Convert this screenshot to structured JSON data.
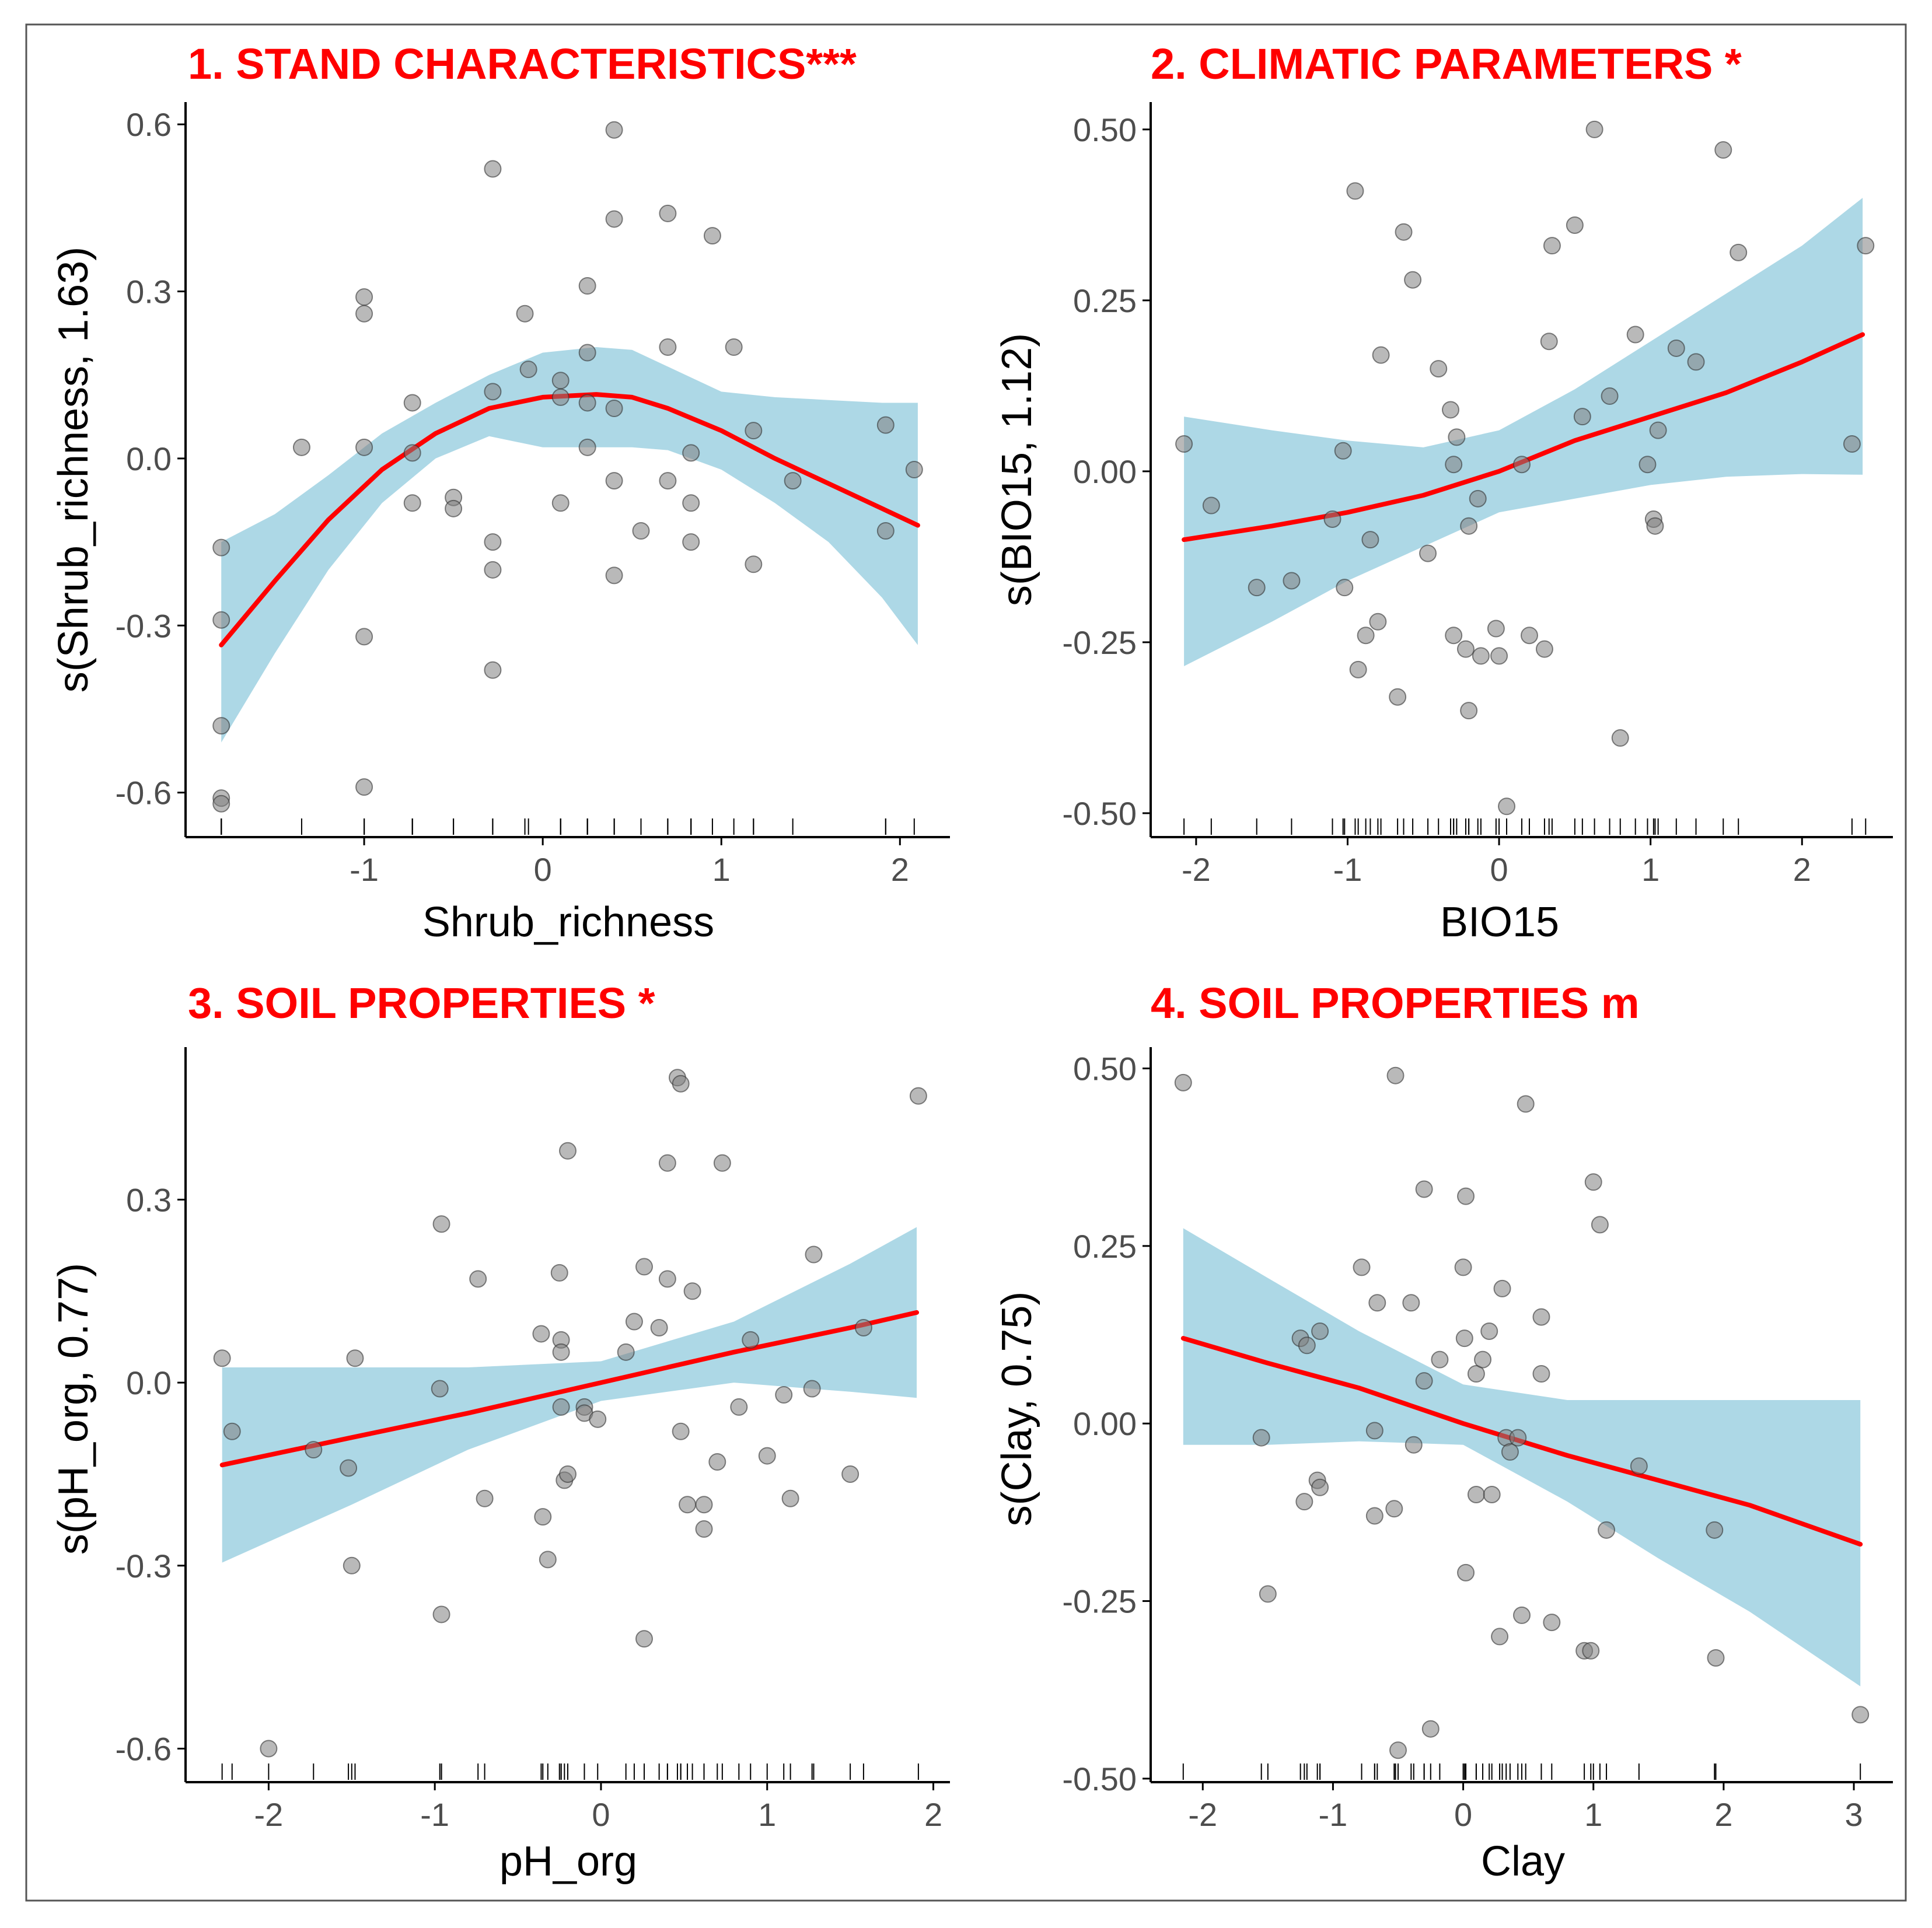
{
  "colors": {
    "title": "#ff0000",
    "band": "#add8e6",
    "line": "#ff0000",
    "point": "#7f7f7f",
    "axis": "#000000",
    "tick_label": "#4d4d4d"
  },
  "chart_data": [
    {
      "type": "scatter",
      "title": "1. STAND CHARACTERISTICS***",
      "xlabel": "Shrub_richness",
      "ylabel": "s(Shrub_richness, 1.63)",
      "xlim": [
        -2.0,
        2.28
      ],
      "ylim": [
        -0.68,
        0.64
      ],
      "xticks": [
        -1,
        0,
        1,
        2
      ],
      "xtick_labels": [
        "-1",
        "0",
        "1",
        "2"
      ],
      "yticks": [
        -0.6,
        -0.3,
        0.0,
        0.3,
        0.6
      ],
      "ytick_labels": [
        "-0.6",
        "-0.3",
        "0.0",
        "0.3",
        "0.6"
      ],
      "fit": {
        "x": [
          -1.8,
          -1.5,
          -1.2,
          -0.9,
          -0.6,
          -0.3,
          0.0,
          0.3,
          0.5,
          0.7,
          1.0,
          1.3,
          1.6,
          1.9,
          2.1
        ],
        "y": [
          -0.335,
          -0.22,
          -0.11,
          -0.02,
          0.045,
          0.09,
          0.11,
          0.115,
          0.11,
          0.09,
          0.05,
          0.0,
          -0.045,
          -0.09,
          -0.12
        ],
        "lower": [
          -0.51,
          -0.35,
          -0.2,
          -0.08,
          0.0,
          0.04,
          0.02,
          0.02,
          0.02,
          0.015,
          -0.02,
          -0.08,
          -0.15,
          -0.25,
          -0.335
        ],
        "upper": [
          -0.15,
          -0.1,
          -0.03,
          0.045,
          0.1,
          0.15,
          0.19,
          0.2,
          0.195,
          0.165,
          0.12,
          0.11,
          0.105,
          0.1,
          0.1
        ]
      },
      "points": [
        [
          -1.8,
          -0.16
        ],
        [
          -1.8,
          -0.29
        ],
        [
          -1.8,
          -0.48
        ],
        [
          -1.8,
          -0.61
        ],
        [
          -1.8,
          -0.62
        ],
        [
          -1.35,
          0.02
        ],
        [
          -1.0,
          0.29
        ],
        [
          -1.0,
          0.26
        ],
        [
          -1.0,
          0.02
        ],
        [
          -1.0,
          -0.32
        ],
        [
          -1.0,
          -0.59
        ],
        [
          -0.73,
          0.1
        ],
        [
          -0.73,
          0.01
        ],
        [
          -0.73,
          -0.08
        ],
        [
          -0.5,
          -0.07
        ],
        [
          -0.5,
          -0.09
        ],
        [
          -0.28,
          0.52
        ],
        [
          -0.28,
          0.12
        ],
        [
          -0.28,
          -0.15
        ],
        [
          -0.28,
          -0.2
        ],
        [
          -0.28,
          -0.38
        ],
        [
          -0.1,
          0.26
        ],
        [
          -0.08,
          0.16
        ],
        [
          0.1,
          0.14
        ],
        [
          0.1,
          0.11
        ],
        [
          0.1,
          -0.08
        ],
        [
          0.25,
          0.31
        ],
        [
          0.25,
          0.19
        ],
        [
          0.25,
          0.1
        ],
        [
          0.25,
          0.02
        ],
        [
          0.4,
          0.59
        ],
        [
          0.4,
          0.43
        ],
        [
          0.4,
          0.09
        ],
        [
          0.4,
          -0.04
        ],
        [
          0.4,
          -0.21
        ],
        [
          0.55,
          -0.13
        ],
        [
          0.7,
          0.44
        ],
        [
          0.7,
          0.2
        ],
        [
          0.7,
          -0.04
        ],
        [
          0.83,
          0.01
        ],
        [
          0.83,
          -0.08
        ],
        [
          0.83,
          -0.15
        ],
        [
          0.95,
          0.4
        ],
        [
          1.07,
          0.2
        ],
        [
          1.18,
          0.05
        ],
        [
          1.18,
          -0.19
        ],
        [
          1.4,
          -0.04
        ],
        [
          1.92,
          0.06
        ],
        [
          1.92,
          -0.13
        ],
        [
          2.08,
          -0.02
        ]
      ]
    },
    {
      "type": "scatter",
      "title": "2. CLIMATIC PARAMETERS *",
      "xlabel": "BIO15",
      "ylabel": "s(BIO15, 1.12)",
      "xlim": [
        -2.3,
        2.6
      ],
      "ylim": [
        -0.535,
        0.54
      ],
      "xticks": [
        -2,
        -1,
        0,
        1,
        2
      ],
      "xtick_labels": [
        "-2",
        "-1",
        "0",
        "1",
        "2"
      ],
      "yticks": [
        -0.5,
        -0.25,
        0.0,
        0.25,
        0.5
      ],
      "ytick_labels": [
        "-0.50",
        "-0.25",
        "0.00",
        "0.25",
        "0.50"
      ],
      "fit": {
        "x": [
          -2.08,
          -1.5,
          -1.0,
          -0.5,
          0.0,
          0.5,
          1.0,
          1.5,
          2.0,
          2.4
        ],
        "y": [
          -0.1,
          -0.08,
          -0.06,
          -0.035,
          0.0,
          0.045,
          0.08,
          0.115,
          0.16,
          0.2
        ],
        "lower": [
          -0.285,
          -0.22,
          -0.16,
          -0.11,
          -0.06,
          -0.04,
          -0.02,
          -0.008,
          -0.004,
          -0.005
        ],
        "upper": [
          0.08,
          0.06,
          0.045,
          0.035,
          0.06,
          0.12,
          0.19,
          0.26,
          0.33,
          0.4
        ]
      },
      "points": [
        [
          -2.08,
          0.04
        ],
        [
          -1.9,
          -0.05
        ],
        [
          -1.6,
          -0.17
        ],
        [
          -1.37,
          -0.16
        ],
        [
          -1.1,
          -0.07
        ],
        [
          -1.03,
          0.03
        ],
        [
          -1.02,
          -0.17
        ],
        [
          -0.95,
          0.41
        ],
        [
          -0.93,
          -0.29
        ],
        [
          -0.88,
          -0.24
        ],
        [
          -0.85,
          -0.1
        ],
        [
          -0.8,
          -0.22
        ],
        [
          -0.78,
          0.17
        ],
        [
          -0.67,
          -0.33
        ],
        [
          -0.63,
          0.35
        ],
        [
          -0.57,
          0.28
        ],
        [
          -0.47,
          -0.12
        ],
        [
          -0.4,
          0.15
        ],
        [
          -0.32,
          0.09
        ],
        [
          -0.3,
          0.01
        ],
        [
          -0.3,
          -0.24
        ],
        [
          -0.28,
          0.05
        ],
        [
          -0.22,
          -0.26
        ],
        [
          -0.2,
          -0.08
        ],
        [
          -0.2,
          -0.35
        ],
        [
          -0.14,
          -0.04
        ],
        [
          -0.12,
          -0.27
        ],
        [
          -0.02,
          -0.23
        ],
        [
          0.0,
          -0.27
        ],
        [
          0.05,
          -0.49
        ],
        [
          0.15,
          0.01
        ],
        [
          0.2,
          -0.24
        ],
        [
          0.3,
          -0.26
        ],
        [
          0.33,
          0.19
        ],
        [
          0.35,
          0.33
        ],
        [
          0.5,
          0.36
        ],
        [
          0.55,
          0.08
        ],
        [
          0.63,
          0.5
        ],
        [
          0.73,
          0.11
        ],
        [
          0.8,
          -0.39
        ],
        [
          0.9,
          0.2
        ],
        [
          0.98,
          0.01
        ],
        [
          1.02,
          -0.07
        ],
        [
          1.03,
          -0.08
        ],
        [
          1.05,
          0.06
        ],
        [
          1.17,
          0.18
        ],
        [
          1.3,
          0.16
        ],
        [
          1.48,
          0.47
        ],
        [
          1.58,
          0.32
        ],
        [
          2.33,
          0.04
        ],
        [
          2.42,
          0.33
        ]
      ]
    },
    {
      "type": "scatter",
      "title": "3. SOIL PROPERTIES *",
      "xlabel": "pH_org",
      "ylabel": "s(pH_org, 0.77)",
      "xlim": [
        -2.5,
        2.1
      ],
      "ylim": [
        -0.655,
        0.55
      ],
      "xticks": [
        -2,
        -1,
        0,
        1,
        2
      ],
      "xtick_labels": [
        "-2",
        "-1",
        "0",
        "1",
        "2"
      ],
      "yticks": [
        -0.6,
        -0.3,
        0.0,
        0.3
      ],
      "ytick_labels": [
        "-0.6",
        "-0.3",
        "0.0",
        "0.3"
      ],
      "fit": {
        "x": [
          -2.28,
          -1.5,
          -0.8,
          0.0,
          0.8,
          1.5,
          1.9
        ],
        "y": [
          -0.135,
          -0.09,
          -0.05,
          0.0,
          0.05,
          0.09,
          0.115
        ],
        "lower": [
          -0.295,
          -0.2,
          -0.11,
          -0.03,
          0.0,
          -0.015,
          -0.025
        ],
        "upper": [
          0.025,
          0.025,
          0.025,
          0.035,
          0.1,
          0.195,
          0.255
        ]
      },
      "points": [
        [
          -2.28,
          0.04
        ],
        [
          -2.22,
          -0.08
        ],
        [
          -2.0,
          -0.6
        ],
        [
          -1.73,
          -0.11
        ],
        [
          -1.52,
          -0.14
        ],
        [
          -1.5,
          -0.3
        ],
        [
          -1.48,
          0.04
        ],
        [
          -0.97,
          -0.01
        ],
        [
          -0.96,
          0.26
        ],
        [
          -0.96,
          -0.38
        ],
        [
          -0.74,
          0.17
        ],
        [
          -0.7,
          -0.19
        ],
        [
          -0.36,
          0.08
        ],
        [
          -0.35,
          -0.22
        ],
        [
          -0.32,
          -0.29
        ],
        [
          -0.25,
          0.18
        ],
        [
          -0.24,
          0.07
        ],
        [
          -0.24,
          0.05
        ],
        [
          -0.24,
          -0.04
        ],
        [
          -0.22,
          -0.16
        ],
        [
          -0.2,
          0.38
        ],
        [
          -0.2,
          -0.15
        ],
        [
          -0.1,
          -0.04
        ],
        [
          -0.1,
          -0.05
        ],
        [
          -0.02,
          -0.06
        ],
        [
          0.15,
          0.05
        ],
        [
          0.2,
          0.1
        ],
        [
          0.26,
          0.19
        ],
        [
          0.26,
          -0.42
        ],
        [
          0.35,
          0.09
        ],
        [
          0.4,
          0.17
        ],
        [
          0.4,
          0.36
        ],
        [
          0.46,
          0.5
        ],
        [
          0.48,
          0.49
        ],
        [
          0.48,
          -0.08
        ],
        [
          0.52,
          -0.2
        ],
        [
          0.55,
          0.15
        ],
        [
          0.62,
          -0.2
        ],
        [
          0.62,
          -0.24
        ],
        [
          0.7,
          -0.13
        ],
        [
          0.73,
          0.36
        ],
        [
          0.83,
          -0.04
        ],
        [
          0.9,
          0.07
        ],
        [
          1.0,
          -0.12
        ],
        [
          1.1,
          -0.02
        ],
        [
          1.14,
          -0.19
        ],
        [
          1.27,
          -0.01
        ],
        [
          1.28,
          0.21
        ],
        [
          1.5,
          -0.15
        ],
        [
          1.58,
          0.09
        ],
        [
          1.91,
          0.47
        ]
      ]
    },
    {
      "type": "scatter",
      "title": "4. SOIL PROPERTIES m",
      "xlabel": "Clay",
      "ylabel": "s(Clay, 0.75)",
      "xlim": [
        -2.4,
        3.3
      ],
      "ylim": [
        -0.505,
        0.53
      ],
      "xticks": [
        -2,
        -1,
        0,
        1,
        2,
        3
      ],
      "xtick_labels": [
        "-2",
        "-1",
        "0",
        "1",
        "2",
        "3"
      ],
      "yticks": [
        -0.5,
        -0.25,
        0.0,
        0.25,
        0.5
      ],
      "ytick_labels": [
        "-0.50",
        "-0.25",
        "0.00",
        "0.25",
        "0.50"
      ],
      "fit": {
        "x": [
          -2.15,
          -1.5,
          -0.8,
          0.0,
          0.8,
          1.5,
          2.2,
          3.05
        ],
        "y": [
          0.12,
          0.085,
          0.05,
          0.0,
          -0.045,
          -0.08,
          -0.115,
          -0.17
        ],
        "lower": [
          -0.03,
          -0.03,
          -0.025,
          -0.03,
          -0.11,
          -0.19,
          -0.265,
          -0.37
        ],
        "upper": [
          0.275,
          0.205,
          0.13,
          0.055,
          0.033,
          0.033,
          0.033,
          0.033
        ]
      },
      "points": [
        [
          -2.15,
          0.48
        ],
        [
          -1.55,
          -0.02
        ],
        [
          -1.5,
          -0.24
        ],
        [
          -1.25,
          0.12
        ],
        [
          -1.22,
          -0.11
        ],
        [
          -1.2,
          0.11
        ],
        [
          -1.12,
          -0.08
        ],
        [
          -1.1,
          -0.09
        ],
        [
          -1.1,
          0.13
        ],
        [
          -0.78,
          0.22
        ],
        [
          -0.68,
          -0.01
        ],
        [
          -0.68,
          -0.13
        ],
        [
          -0.66,
          0.17
        ],
        [
          -0.53,
          -0.12
        ],
        [
          -0.52,
          0.49
        ],
        [
          -0.5,
          -0.46
        ],
        [
          -0.4,
          0.17
        ],
        [
          -0.38,
          -0.03
        ],
        [
          -0.3,
          0.06
        ],
        [
          -0.3,
          0.33
        ],
        [
          -0.25,
          -0.43
        ],
        [
          -0.18,
          0.09
        ],
        [
          0.0,
          0.22
        ],
        [
          0.01,
          0.12
        ],
        [
          0.02,
          0.32
        ],
        [
          0.02,
          -0.21
        ],
        [
          0.1,
          0.07
        ],
        [
          0.1,
          -0.1
        ],
        [
          0.15,
          0.09
        ],
        [
          0.2,
          0.13
        ],
        [
          0.22,
          -0.1
        ],
        [
          0.28,
          -0.3
        ],
        [
          0.3,
          0.19
        ],
        [
          0.33,
          -0.02
        ],
        [
          0.36,
          -0.04
        ],
        [
          0.42,
          -0.02
        ],
        [
          0.45,
          -0.27
        ],
        [
          0.48,
          0.45
        ],
        [
          0.6,
          0.15
        ],
        [
          0.6,
          0.07
        ],
        [
          0.68,
          -0.28
        ],
        [
          0.93,
          -0.32
        ],
        [
          0.98,
          -0.32
        ],
        [
          1.0,
          0.34
        ],
        [
          1.05,
          0.28
        ],
        [
          1.1,
          -0.15
        ],
        [
          1.35,
          -0.06
        ],
        [
          1.93,
          -0.15
        ],
        [
          1.94,
          -0.33
        ],
        [
          3.05,
          -0.41
        ]
      ]
    }
  ]
}
